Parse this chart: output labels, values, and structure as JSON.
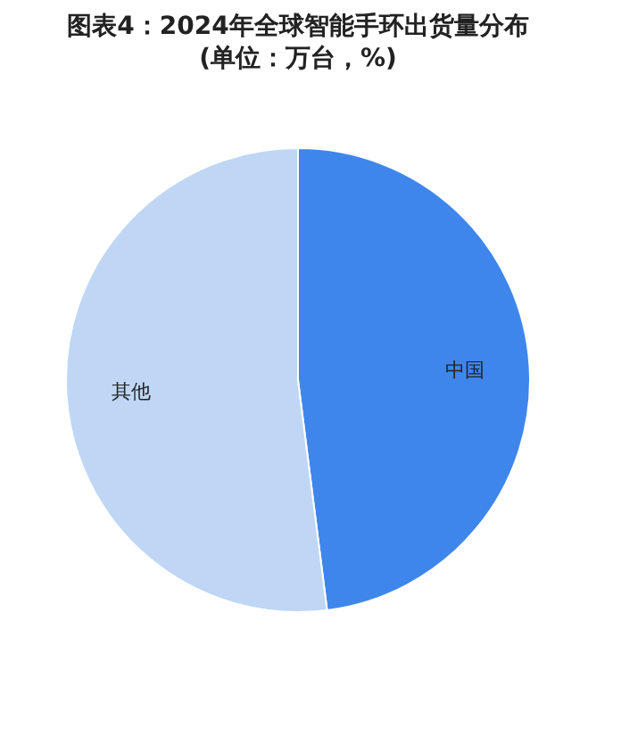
{
  "chart_data": {
    "type": "pie",
    "title": "图表4：2024年全球智能手环出货量分布(单位：万台，%)",
    "categories": [
      "中国",
      "其他"
    ],
    "values": [
      48,
      52
    ],
    "colors": [
      "#3f86ec",
      "#bfd7f5"
    ]
  }
}
